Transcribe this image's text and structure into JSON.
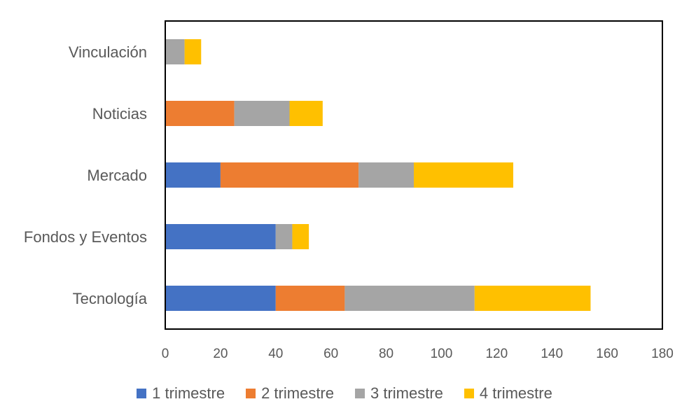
{
  "chart_data": {
    "type": "bar",
    "orientation": "horizontal",
    "stacked": true,
    "title": "",
    "xlabel": "",
    "ylabel": "",
    "categories": [
      "Vinculación",
      "Noticias",
      "Mercado",
      "Fondos y Eventos",
      "Tecnología"
    ],
    "series": [
      {
        "name": "1 trimestre",
        "color": "#4472C4",
        "values": [
          0,
          0,
          20,
          40,
          40
        ]
      },
      {
        "name": "2 trimestre",
        "color": "#ED7D31",
        "values": [
          0,
          25,
          50,
          0,
          25
        ]
      },
      {
        "name": "3 trimestre",
        "color": "#A5A5A5",
        "values": [
          7,
          20,
          20,
          6,
          47
        ]
      },
      {
        "name": "4 trimestre",
        "color": "#FFC000",
        "values": [
          6,
          12,
          36,
          6,
          42
        ]
      }
    ],
    "xlim": [
      0,
      180
    ],
    "xticks": [
      "0",
      "20",
      "40",
      "60",
      "80",
      "100",
      "120",
      "140",
      "160",
      "180"
    ],
    "grid": false,
    "legend_position": "bottom"
  }
}
